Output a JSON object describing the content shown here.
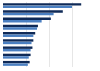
{
  "chart_data": {
    "type": "bar",
    "orientation": "horizontal",
    "categories": [
      null,
      null,
      null,
      null,
      null,
      null,
      null,
      null,
      null
    ],
    "series": [
      {
        "color": "#0f2a57",
        "values": [
          85,
          65,
          52,
          38,
          35,
          33,
          32,
          30,
          29
        ]
      },
      {
        "color": "#4a7fc1",
        "values": [
          75,
          55,
          42,
          37,
          33,
          31,
          30,
          28,
          27
        ]
      }
    ],
    "xlim": [
      0,
      100
    ],
    "xticks": [
      0,
      25,
      50,
      75,
      100
    ],
    "grid": true,
    "tick_labels": false
  }
}
